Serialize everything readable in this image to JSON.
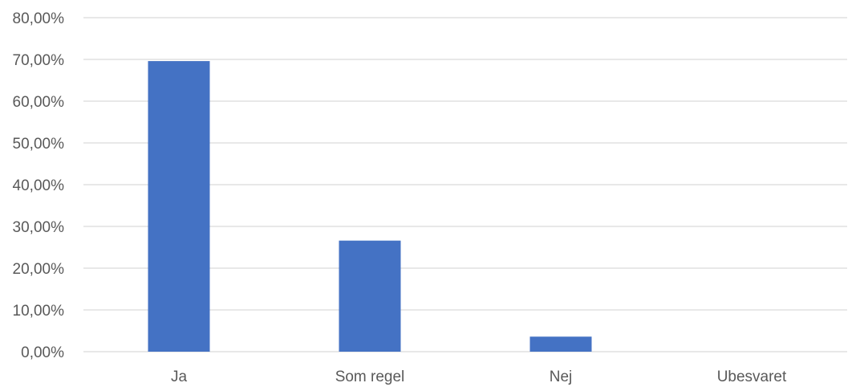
{
  "chart_data": {
    "type": "bar",
    "categories": [
      "Ja",
      "Som regel",
      "Nej",
      "Ubesvaret"
    ],
    "series": [
      {
        "values": [
          69.6,
          26.6,
          3.6,
          0.0
        ]
      }
    ],
    "ylim": [
      0,
      80
    ],
    "ytick_step": 10,
    "ytick_labels": [
      "0,00%",
      "10,00%",
      "20,00%",
      "30,00%",
      "40,00%",
      "50,00%",
      "60,00%",
      "70,00%",
      "80,00%"
    ],
    "title": "",
    "xlabel": "",
    "ylabel": "",
    "grid": true,
    "legend": "none",
    "colors": {
      "bar": "#4472c4",
      "grid": "#d9d9d9",
      "axis": "#bfbfbf",
      "text": "#595959"
    }
  }
}
